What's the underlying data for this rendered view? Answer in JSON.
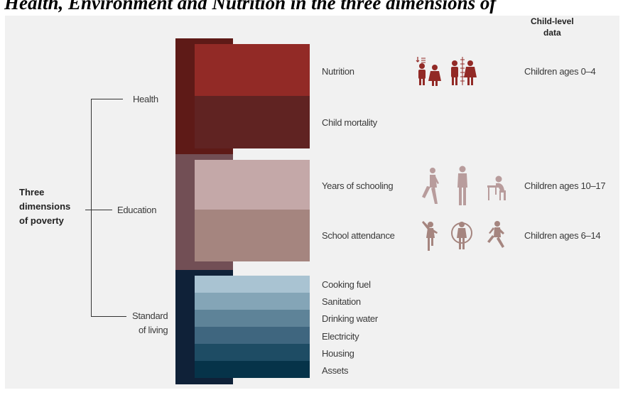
{
  "figure_title": "Health, Environment and Nutrition in the three dimensions of",
  "header": {
    "child_level_data": "Child-level\ndata"
  },
  "root_label": "Three\ndimensions\nof poverty",
  "dimensions": [
    {
      "label": "Health"
    },
    {
      "label": "Education"
    },
    {
      "label": "Standard\nof living"
    }
  ],
  "indicators": {
    "nutrition": "Nutrition",
    "child_mortality": "Child mortality",
    "years_of_schooling": "Years of schooling",
    "school_attendance": "School attendance",
    "cooking_fuel": "Cooking fuel",
    "sanitation": "Sanitation",
    "drinking_water": "Drinking water",
    "electricity": "Electricity",
    "housing": "Housing",
    "assets": "Assets"
  },
  "child_ages": {
    "nutrition": "Children ages 0–4",
    "years_of_schooling": "Children ages 10–17",
    "school_attendance": "Children ages 6–14"
  },
  "colors": {
    "health_back": "#5e1a17",
    "nutrition": "#922a26",
    "child_mortality": "#602322",
    "education_back": "#724f55",
    "years_of_schooling": "#c4a8a8",
    "school_attendance": "#a5857f",
    "living_back": "#0f2138",
    "cooking_fuel": "#a9c3d2",
    "sanitation": "#84a5b7",
    "drinking_water": "#5e8398",
    "electricity": "#3f667f",
    "housing": "#1e4c64",
    "assets": "#063349",
    "health_icon": "#922a26",
    "education_icon": "#b89c9c"
  },
  "icons": {
    "nutrition": [
      "children-pair-height-icon",
      "children-pair-growth-icon"
    ],
    "years_of_schooling": [
      "walking-youth-icon",
      "standing-youth-icon",
      "seated-student-icon"
    ],
    "school_attendance": [
      "dancing-child-icon",
      "child-with-hoop-icon",
      "running-child-icon"
    ]
  }
}
